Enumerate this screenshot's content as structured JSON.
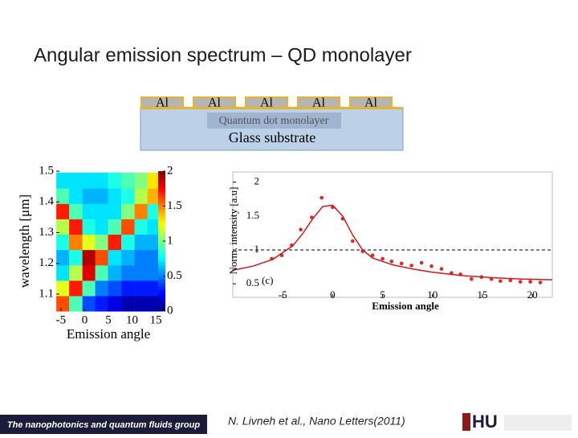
{
  "title": "Angular emission spectrum – QD monolayer",
  "diagram": {
    "layers": [
      "Al",
      "Al",
      "Al",
      "Al",
      "Al"
    ],
    "monolayer": "Quantum dot monolayer",
    "substrate": "Glass substrate"
  },
  "footer": {
    "group": "The nanophotonics and quantum fluids group",
    "citation": "N. Livneh et al., Nano Letters(2011)",
    "logo": "HU"
  },
  "chart_data": [
    {
      "type": "heatmap",
      "xlabel": "Emission angle",
      "ylabel": "wavelength [μm]",
      "colormap": "jet",
      "x": [
        -4.6,
        -1.9,
        0.9,
        3.6,
        6.3,
        9.1,
        11.9,
        14.6
      ],
      "y": [
        1.07,
        1.12,
        1.17,
        1.22,
        1.27,
        1.32,
        1.37,
        1.42,
        1.47
      ],
      "z": [
        [
          1.6,
          0.9,
          0.4,
          0.3,
          0.2,
          0.1,
          0.1,
          0.1
        ],
        [
          1.2,
          1.7,
          0.9,
          0.5,
          0.4,
          0.3,
          0.3,
          0.3
        ],
        [
          0.7,
          1.1,
          1.8,
          0.9,
          0.6,
          0.5,
          0.5,
          0.5
        ],
        [
          0.6,
          0.8,
          1.9,
          1.6,
          0.7,
          0.6,
          0.5,
          0.5
        ],
        [
          0.8,
          1.5,
          1.2,
          1.0,
          1.7,
          0.8,
          0.6,
          0.6
        ],
        [
          1.1,
          1.7,
          0.8,
          0.7,
          0.9,
          1.6,
          0.8,
          0.7
        ],
        [
          1.7,
          0.9,
          0.7,
          0.7,
          0.7,
          1.0,
          1.5,
          0.8
        ],
        [
          0.9,
          0.7,
          0.6,
          0.6,
          0.7,
          0.8,
          1.1,
          1.4
        ],
        [
          0.7,
          0.7,
          0.7,
          0.7,
          0.8,
          0.9,
          1.0,
          1.3
        ]
      ],
      "xlim": [
        -6,
        16
      ],
      "ylim": [
        1.045,
        1.5
      ],
      "clim": [
        0,
        2
      ],
      "xticks": [
        -5,
        0,
        5,
        10,
        15
      ],
      "yticks": [
        1.1,
        1.2,
        1.3,
        1.4,
        1.5
      ],
      "cticks": [
        0,
        0.5,
        1,
        1.5,
        2
      ]
    },
    {
      "type": "scatter",
      "xlabel": "Emission angle",
      "ylabel": "Norm. intensity [a.u]",
      "annotation": "(c)",
      "xlim": [
        -10,
        22
      ],
      "ylim": [
        0.3,
        2.15
      ],
      "xticks": [
        -5,
        0,
        5,
        10,
        15,
        20
      ],
      "yticks": [
        0.5,
        1,
        1.5,
        2
      ],
      "reference_line": 1,
      "series": [
        {
          "type": "scatter",
          "color": "#e0282b",
          "x": [
            -6.1,
            -5.1,
            -4.1,
            -3.2,
            -2.1,
            -1.1,
            0,
            1.0,
            2.0,
            3.0,
            4.0,
            5.0,
            5.9,
            6.9,
            7.9,
            8.9,
            9.9,
            10.9,
            11.9,
            12.8,
            13.9,
            14.9,
            15.9,
            16.8,
            17.8,
            18.8,
            19.8,
            20.8
          ],
          "values": [
            0.87,
            0.92,
            1.07,
            1.3,
            1.48,
            1.77,
            1.63,
            1.46,
            1.13,
            0.98,
            0.92,
            0.87,
            0.83,
            0.8,
            0.77,
            0.81,
            0.76,
            0.72,
            0.66,
            0.64,
            0.57,
            0.6,
            0.57,
            0.54,
            0.55,
            0.53,
            0.53,
            0.52
          ]
        },
        {
          "type": "line",
          "color": "#d01818",
          "x": [
            -10,
            -8,
            -6,
            -4,
            -3,
            -2,
            -1,
            0,
            1,
            2,
            3,
            4,
            6,
            8,
            10,
            13,
            16,
            19,
            22
          ],
          "values": [
            0.7,
            0.76,
            0.86,
            1.06,
            1.24,
            1.46,
            1.64,
            1.66,
            1.5,
            1.22,
            1.0,
            0.88,
            0.78,
            0.72,
            0.67,
            0.62,
            0.59,
            0.57,
            0.56
          ]
        }
      ]
    }
  ]
}
